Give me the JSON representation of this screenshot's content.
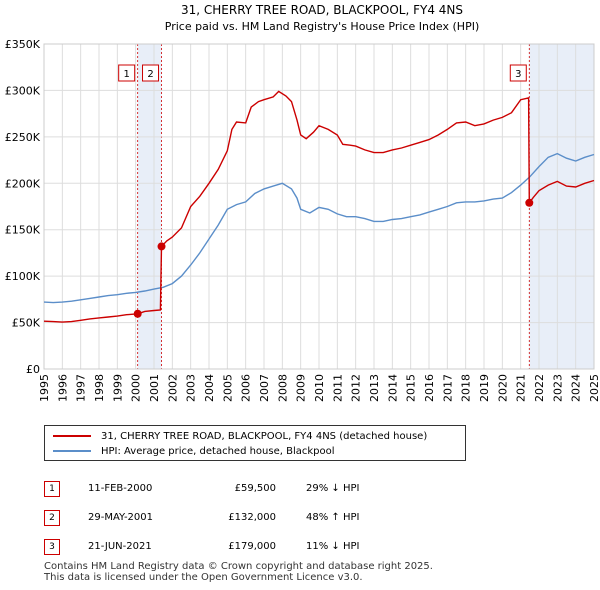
{
  "chart_data": {
    "type": "line",
    "title": "31, CHERRY TREE ROAD, BLACKPOOL, FY4 4NS",
    "subtitle": "Price paid vs. HM Land Registry's House Price Index (HPI)",
    "xlim": [
      1995,
      2025
    ],
    "ylim": [
      0,
      350000
    ],
    "x_ticks": [
      "1995",
      "1996",
      "1997",
      "1998",
      "1999",
      "2000",
      "2001",
      "2002",
      "2003",
      "2004",
      "2005",
      "2006",
      "2007",
      "2008",
      "2009",
      "2010",
      "2011",
      "2012",
      "2013",
      "2014",
      "2015",
      "2016",
      "2017",
      "2018",
      "2019",
      "2020",
      "2021",
      "2022",
      "2023",
      "2024",
      "2025"
    ],
    "y_ticks": [
      {
        "value": 0,
        "label": "£0"
      },
      {
        "value": 50000,
        "label": "£50K"
      },
      {
        "value": 100000,
        "label": "£100K"
      },
      {
        "value": 150000,
        "label": "£150K"
      },
      {
        "value": 200000,
        "label": "£200K"
      },
      {
        "value": 250000,
        "label": "£250K"
      },
      {
        "value": 300000,
        "label": "£300K"
      },
      {
        "value": 350000,
        "label": "£350K"
      }
    ],
    "grid": true,
    "series": [
      {
        "name": "31, CHERRY TREE ROAD, BLACKPOOL, FY4 4NS (detached house)",
        "color": "#cc0000",
        "points": [
          [
            1995,
            51500
          ],
          [
            1995.5,
            51000
          ],
          [
            1996,
            50500
          ],
          [
            1996.5,
            51000
          ],
          [
            1997,
            52500
          ],
          [
            1997.5,
            54000
          ],
          [
            1998,
            55000
          ],
          [
            1998.5,
            56000
          ],
          [
            1999,
            57000
          ],
          [
            1999.5,
            58500
          ],
          [
            2000.11,
            59500
          ],
          [
            2000.5,
            62000
          ],
          [
            2001,
            63000
          ],
          [
            2001.35,
            63500
          ],
          [
            2001.41,
            132000
          ],
          [
            2001.7,
            138000
          ],
          [
            2002,
            142000
          ],
          [
            2002.5,
            152000
          ],
          [
            2003,
            175000
          ],
          [
            2003.5,
            186000
          ],
          [
            2004,
            200000
          ],
          [
            2004.5,
            215000
          ],
          [
            2005,
            235000
          ],
          [
            2005.25,
            258000
          ],
          [
            2005.5,
            266000
          ],
          [
            2006,
            265000
          ],
          [
            2006.3,
            282000
          ],
          [
            2006.7,
            288000
          ],
          [
            2007,
            290000
          ],
          [
            2007.5,
            293000
          ],
          [
            2007.8,
            299000
          ],
          [
            2008.2,
            294000
          ],
          [
            2008.5,
            288000
          ],
          [
            2008.8,
            268000
          ],
          [
            2009,
            252000
          ],
          [
            2009.3,
            248000
          ],
          [
            2009.7,
            255000
          ],
          [
            2010,
            262000
          ],
          [
            2010.5,
            258000
          ],
          [
            2011,
            252000
          ],
          [
            2011.3,
            242000
          ],
          [
            2011.7,
            241000
          ],
          [
            2012,
            240000
          ],
          [
            2012.5,
            236000
          ],
          [
            2013,
            233000
          ],
          [
            2013.5,
            233000
          ],
          [
            2014,
            236000
          ],
          [
            2014.5,
            238000
          ],
          [
            2015,
            241000
          ],
          [
            2015.5,
            244000
          ],
          [
            2016,
            247000
          ],
          [
            2016.5,
            252000
          ],
          [
            2017,
            258000
          ],
          [
            2017.5,
            265000
          ],
          [
            2018,
            266000
          ],
          [
            2018.5,
            262000
          ],
          [
            2019,
            264000
          ],
          [
            2019.5,
            268000
          ],
          [
            2020,
            271000
          ],
          [
            2020.5,
            276000
          ],
          [
            2021,
            290000
          ],
          [
            2021.43,
            292000
          ],
          [
            2021.47,
            179000
          ],
          [
            2021.7,
            185000
          ],
          [
            2022,
            192000
          ],
          [
            2022.5,
            198000
          ],
          [
            2023,
            202000
          ],
          [
            2023.5,
            197000
          ],
          [
            2024,
            196000
          ],
          [
            2024.5,
            200000
          ],
          [
            2025,
            203000
          ]
        ]
      },
      {
        "name": "HPI: Average price, detached house, Blackpool",
        "color": "#5b8ec9",
        "points": [
          [
            1995,
            72000
          ],
          [
            1995.5,
            71500
          ],
          [
            1996,
            72000
          ],
          [
            1996.5,
            73000
          ],
          [
            1997,
            74500
          ],
          [
            1997.5,
            76000
          ],
          [
            1998,
            77500
          ],
          [
            1998.5,
            79000
          ],
          [
            1999,
            80000
          ],
          [
            1999.5,
            81500
          ],
          [
            2000,
            82500
          ],
          [
            2000.5,
            84000
          ],
          [
            2001,
            86000
          ],
          [
            2001.5,
            88000
          ],
          [
            2002,
            92000
          ],
          [
            2002.5,
            100000
          ],
          [
            2003,
            112000
          ],
          [
            2003.5,
            125000
          ],
          [
            2004,
            140000
          ],
          [
            2004.5,
            155000
          ],
          [
            2005,
            172000
          ],
          [
            2005.5,
            177000
          ],
          [
            2006,
            180000
          ],
          [
            2006.5,
            189000
          ],
          [
            2007,
            194000
          ],
          [
            2007.5,
            197000
          ],
          [
            2008,
            200000
          ],
          [
            2008.5,
            194000
          ],
          [
            2008.8,
            184000
          ],
          [
            2009,
            172000
          ],
          [
            2009.5,
            168000
          ],
          [
            2010,
            174000
          ],
          [
            2010.5,
            172000
          ],
          [
            2011,
            167000
          ],
          [
            2011.5,
            164000
          ],
          [
            2012,
            164000
          ],
          [
            2012.5,
            162000
          ],
          [
            2013,
            159000
          ],
          [
            2013.5,
            159000
          ],
          [
            2014,
            161000
          ],
          [
            2014.5,
            162000
          ],
          [
            2015,
            164000
          ],
          [
            2015.5,
            166000
          ],
          [
            2016,
            169000
          ],
          [
            2016.5,
            172000
          ],
          [
            2017,
            175000
          ],
          [
            2017.5,
            179000
          ],
          [
            2018,
            180000
          ],
          [
            2018.5,
            180000
          ],
          [
            2019,
            181000
          ],
          [
            2019.5,
            183000
          ],
          [
            2020,
            184000
          ],
          [
            2020.5,
            190000
          ],
          [
            2021,
            198000
          ],
          [
            2021.5,
            207000
          ],
          [
            2022,
            218000
          ],
          [
            2022.5,
            228000
          ],
          [
            2023,
            232000
          ],
          [
            2023.5,
            227000
          ],
          [
            2024,
            224000
          ],
          [
            2024.5,
            228000
          ],
          [
            2025,
            231000
          ]
        ]
      }
    ],
    "transactions": [
      {
        "num": "1",
        "x": 2000.11,
        "price": 59500
      },
      {
        "num": "2",
        "x": 2001.41,
        "price": 132000
      },
      {
        "num": "3",
        "x": 2021.47,
        "price": 179000
      }
    ],
    "shaded_ranges": [
      [
        2000.11,
        2001.41
      ],
      [
        2021.47,
        2025
      ]
    ]
  },
  "legend": {
    "property_label": "31, CHERRY TREE ROAD, BLACKPOOL, FY4 4NS (detached house)",
    "hpi_label": "HPI: Average price, detached house, Blackpool"
  },
  "table": [
    {
      "num": "1",
      "date": "11-FEB-2000",
      "price": "£59,500",
      "hpi": "29% ↓ HPI"
    },
    {
      "num": "2",
      "date": "29-MAY-2001",
      "price": "£132,000",
      "hpi": "48% ↑ HPI"
    },
    {
      "num": "3",
      "date": "21-JUN-2021",
      "price": "£179,000",
      "hpi": "11% ↓ HPI"
    }
  ],
  "footer": {
    "line1": "Contains HM Land Registry data © Crown copyright and database right 2025.",
    "line2": "This data is licensed under the Open Government Licence v3.0."
  },
  "colors": {
    "property": "#cc0000",
    "hpi": "#5b8ec9",
    "shade": "#e8eef8"
  }
}
